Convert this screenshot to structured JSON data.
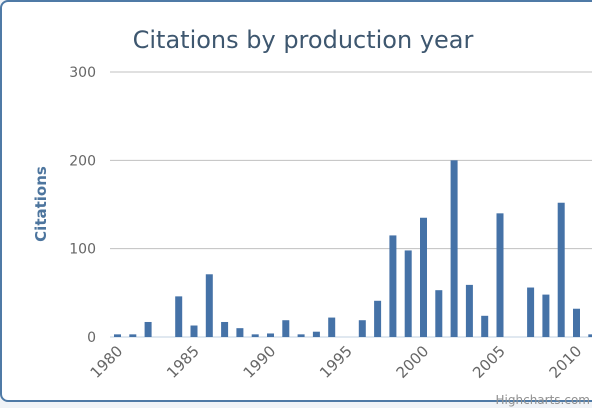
{
  "chart_data": {
    "type": "bar",
    "title": "Citations by production year",
    "ylabel": "Citations",
    "xlabel": "",
    "ylim": [
      0,
      300
    ],
    "yticks": [
      "0",
      "100",
      "200",
      "300"
    ],
    "xtick_labels": [
      "1980",
      "1985",
      "1990",
      "1995",
      "2000",
      "2005",
      "2010"
    ],
    "grid": true,
    "credit": "Highcharts.com",
    "bar_color": "#4572a7",
    "categories": [
      1980,
      1981,
      1982,
      1983,
      1984,
      1985,
      1986,
      1987,
      1988,
      1989,
      1990,
      1991,
      1992,
      1993,
      1994,
      1995,
      1996,
      1997,
      1998,
      1999,
      2000,
      2001,
      2002,
      2003,
      2004,
      2005,
      2006,
      2007,
      2008,
      2009,
      2010,
      2011,
      2012
    ],
    "values": [
      3,
      3,
      17,
      0,
      46,
      13,
      71,
      17,
      10,
      3,
      4,
      19,
      3,
      6,
      22,
      0,
      19,
      41,
      115,
      98,
      135,
      53,
      200,
      59,
      24,
      140,
      0,
      56,
      48,
      152,
      32,
      3,
      0
    ]
  }
}
